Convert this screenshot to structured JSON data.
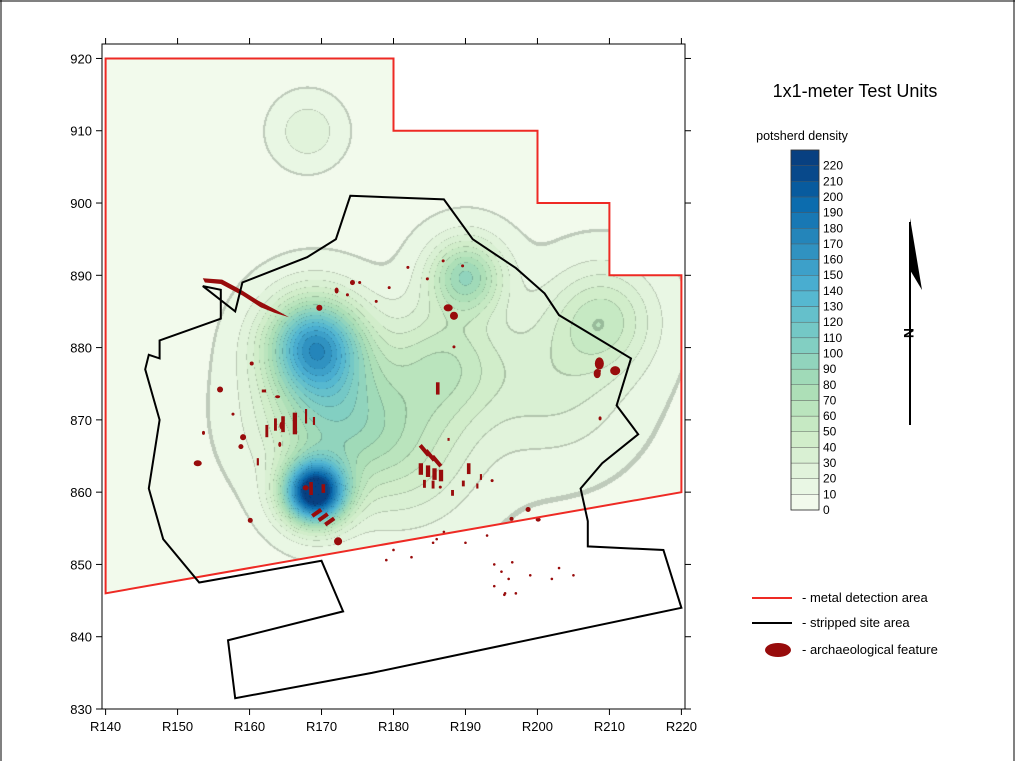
{
  "chart_data": {
    "type": "heatmap",
    "title": "1x1-meter Test Units",
    "colorbar": {
      "title": "potsherd density",
      "levels": [
        0,
        10,
        20,
        30,
        40,
        50,
        60,
        70,
        80,
        90,
        100,
        110,
        120,
        130,
        140,
        150,
        160,
        170,
        180,
        190,
        200,
        210,
        220
      ],
      "min": 0,
      "max": 220
    },
    "x_axis": {
      "min": 139.5,
      "max": 220.5,
      "ticks": [
        140,
        150,
        160,
        170,
        180,
        190,
        200,
        210,
        220
      ],
      "tick_labels": [
        "R140",
        "R150",
        "R160",
        "R170",
        "R180",
        "R190",
        "R200",
        "R210",
        "R220"
      ]
    },
    "y_axis": {
      "min": 830,
      "max": 922,
      "ticks": [
        830,
        840,
        850,
        860,
        870,
        880,
        890,
        900,
        910,
        920
      ],
      "tick_labels": [
        "830",
        "840",
        "850",
        "860",
        "870",
        "880",
        "890",
        "900",
        "910",
        "920"
      ]
    },
    "density_peaks": [
      {
        "x": 169,
        "y": 860,
        "value": 225,
        "spread": 4.2
      },
      {
        "x": 169,
        "y": 880.5,
        "value": 140,
        "spread": 6.5
      },
      {
        "x": 171,
        "y": 871,
        "value": 70,
        "spread": 9
      },
      {
        "x": 181,
        "y": 866,
        "value": 40,
        "spread": 10
      },
      {
        "x": 190,
        "y": 890,
        "value": 80,
        "spread": 5
      },
      {
        "x": 187,
        "y": 878,
        "value": 45,
        "spread": 8
      },
      {
        "x": 209,
        "y": 884,
        "value": 45,
        "spread": 7
      },
      {
        "x": 202,
        "y": 875,
        "value": 25,
        "spread": 10
      },
      {
        "x": 168,
        "y": 910,
        "value": 22,
        "spread": 4
      }
    ],
    "metal_detection_area": [
      [
        140,
        920
      ],
      [
        180,
        920
      ],
      [
        180,
        910
      ],
      [
        200,
        910
      ],
      [
        200,
        900
      ],
      [
        210,
        900
      ],
      [
        210,
        890
      ],
      [
        220,
        890
      ],
      [
        220,
        860
      ],
      [
        140,
        846
      ]
    ],
    "stripped_site_area": [
      [
        174,
        901
      ],
      [
        187,
        900.5
      ],
      [
        191,
        895
      ],
      [
        197,
        891
      ],
      [
        201,
        887.5
      ],
      [
        203,
        884.5
      ],
      [
        213,
        878.5
      ],
      [
        211,
        872
      ],
      [
        214,
        868
      ],
      [
        209,
        864
      ],
      [
        206,
        860.5
      ],
      [
        207,
        856
      ],
      [
        207,
        852.5
      ],
      [
        217.5,
        852
      ],
      [
        220,
        844
      ],
      [
        177,
        835
      ],
      [
        158,
        831.5
      ],
      [
        157,
        839.5
      ],
      [
        173,
        843.5
      ],
      [
        170,
        850.5
      ],
      [
        153,
        847.5
      ],
      [
        148,
        853.5
      ],
      [
        146,
        860.5
      ],
      [
        147.5,
        870
      ],
      [
        145.5,
        877
      ],
      [
        146,
        879
      ],
      [
        147.5,
        878.5
      ],
      [
        147.5,
        881
      ],
      [
        156,
        884
      ],
      [
        156,
        888
      ],
      [
        153.5,
        888.5
      ],
      [
        158,
        885
      ],
      [
        159,
        889
      ],
      [
        168,
        892.5
      ],
      [
        172,
        895
      ]
    ],
    "features": [
      {
        "shape": "ellipse",
        "x": 210.8,
        "y": 876.8,
        "rx": 1.0,
        "ry": 0.9
      },
      {
        "shape": "ellipse",
        "x": 208.6,
        "y": 877.8,
        "rx": 0.9,
        "ry": 1.2
      },
      {
        "shape": "ellipse",
        "x": 208.3,
        "y": 876.4,
        "rx": 0.7,
        "ry": 0.9
      },
      {
        "shape": "ellipse",
        "x": 187.6,
        "y": 885.5,
        "rx": 0.9,
        "ry": 0.7
      },
      {
        "shape": "ellipse",
        "x": 188.4,
        "y": 884.4,
        "rx": 0.8,
        "ry": 0.8
      },
      {
        "shape": "ellipse",
        "x": 169.7,
        "y": 885.5,
        "rx": 0.6,
        "ry": 0.6
      },
      {
        "shape": "ellipse",
        "x": 160.3,
        "y": 877.8,
        "rx": 0.4,
        "ry": 0.4
      },
      {
        "shape": "ellipse",
        "x": 155.9,
        "y": 874.2,
        "rx": 0.6,
        "ry": 0.6
      },
      {
        "shape": "ellipse",
        "x": 152.8,
        "y": 864.0,
        "rx": 0.8,
        "ry": 0.6
      },
      {
        "shape": "ellipse",
        "x": 159.1,
        "y": 867.6,
        "rx": 0.6,
        "ry": 0.6
      },
      {
        "shape": "ellipse",
        "x": 158.8,
        "y": 866.3,
        "rx": 0.5,
        "ry": 0.5
      },
      {
        "shape": "ellipse",
        "x": 167.8,
        "y": 860.6,
        "rx": 0.6,
        "ry": 0.5
      },
      {
        "shape": "ellipse",
        "x": 172.3,
        "y": 853.2,
        "rx": 0.8,
        "ry": 0.8
      },
      {
        "shape": "ellipse",
        "x": 160.1,
        "y": 856.1,
        "rx": 0.5,
        "ry": 0.5
      },
      {
        "shape": "ellipse",
        "x": 200.1,
        "y": 856.2,
        "rx": 0.5,
        "ry": 0.4
      },
      {
        "shape": "ellipse",
        "x": 198.7,
        "y": 857.6,
        "rx": 0.5,
        "ry": 0.5
      },
      {
        "shape": "ellipse",
        "x": 196.4,
        "y": 856.3,
        "rx": 0.4,
        "ry": 0.4
      },
      {
        "shape": "ellipse",
        "x": 164.5,
        "y": 869.2,
        "rx": 0.5,
        "ry": 0.8
      },
      {
        "shape": "ellipse",
        "x": 174.3,
        "y": 889.0,
        "rx": 0.5,
        "ry": 0.5
      },
      {
        "shape": "ellipse",
        "x": 172.1,
        "y": 887.9,
        "rx": 0.4,
        "ry": 0.6
      },
      {
        "shape": "ellipse",
        "x": 193.7,
        "y": 861.6,
        "rx": 0.3,
        "ry": 0.3
      },
      {
        "shape": "ellipse",
        "x": 208.7,
        "y": 870.2,
        "rx": 0.3,
        "ry": 0.4
      },
      {
        "shape": "ellipse",
        "x": 163.9,
        "y": 873.2,
        "rx": 0.5,
        "ry": 0.2
      },
      {
        "shape": "ellipse",
        "x": 164.2,
        "y": 866.6,
        "rx": 0.3,
        "ry": 0.5
      },
      {
        "shape": "ellipse",
        "x": 173.6,
        "y": 887.3,
        "rx": 0.3,
        "ry": 0.3
      },
      {
        "shape": "ellipse",
        "x": 157.7,
        "y": 870.8,
        "rx": 0.3,
        "ry": 0.3
      },
      {
        "shape": "ellipse",
        "x": 153.6,
        "y": 868.2,
        "rx": 0.3,
        "ry": 0.4
      },
      {
        "shape": "ellipse",
        "x": 186.5,
        "y": 860.7,
        "rx": 0.3,
        "ry": 0.2
      },
      {
        "shape": "ellipse",
        "x": 189.6,
        "y": 891.3,
        "rx": 0.3,
        "ry": 0.3
      },
      {
        "shape": "ellipse",
        "x": 186.9,
        "y": 892.0,
        "rx": 0.3,
        "ry": 0.3
      },
      {
        "shape": "ellipse",
        "x": 182.0,
        "y": 891.1,
        "rx": 0.3,
        "ry": 0.3
      },
      {
        "shape": "ellipse",
        "x": 179.4,
        "y": 888.3,
        "rx": 0.2,
        "ry": 0.2
      },
      {
        "shape": "ellipse",
        "x": 175.3,
        "y": 889.0,
        "rx": 0.3,
        "ry": 0.3
      },
      {
        "shape": "ellipse",
        "x": 184.7,
        "y": 889.5,
        "rx": 0.2,
        "ry": 0.2
      },
      {
        "shape": "ellipse",
        "x": 188.4,
        "y": 880.1,
        "rx": 0.2,
        "ry": 0.2
      },
      {
        "shape": "ellipse",
        "x": 177.6,
        "y": 886.4,
        "rx": 0.2,
        "ry": 0.2
      },
      {
        "shape": "rect",
        "x": 167.7,
        "y": 869.5,
        "w": 0.3,
        "h": 2.0
      },
      {
        "shape": "rect",
        "x": 166.0,
        "y": 868.0,
        "w": 0.6,
        "h": 3.0
      },
      {
        "shape": "rect",
        "x": 163.4,
        "y": 868.5,
        "w": 0.4,
        "h": 1.7
      },
      {
        "shape": "rect",
        "x": 162.2,
        "y": 867.6,
        "w": 0.4,
        "h": 1.7
      },
      {
        "shape": "rect",
        "x": 164.4,
        "y": 868.3,
        "w": 0.5,
        "h": 2.2
      },
      {
        "shape": "rect",
        "x": 161.0,
        "y": 863.7,
        "w": 0.3,
        "h": 1.0
      },
      {
        "shape": "rect",
        "x": 168.8,
        "y": 869.3,
        "w": 0.3,
        "h": 1.1
      },
      {
        "shape": "rect",
        "x": 168.3,
        "y": 859.6,
        "w": 0.5,
        "h": 1.8
      },
      {
        "shape": "rect",
        "x": 170.0,
        "y": 859.9,
        "w": 0.5,
        "h": 1.2
      },
      {
        "shape": "rect",
        "x": 161.7,
        "y": 873.8,
        "w": 0.6,
        "h": 0.4
      },
      {
        "shape": "rect",
        "x": 185.9,
        "y": 873.5,
        "w": 0.5,
        "h": 1.7
      },
      {
        "shape": "rect",
        "x": 187.5,
        "y": 867.1,
        "w": 0.3,
        "h": 0.4
      },
      {
        "shape": "rect",
        "x": 183.5,
        "y": 862.4,
        "w": 0.6,
        "h": 1.6
      },
      {
        "shape": "rect",
        "x": 184.5,
        "y": 862.1,
        "w": 0.6,
        "h": 1.6
      },
      {
        "shape": "rect",
        "x": 185.4,
        "y": 861.7,
        "w": 0.6,
        "h": 1.6
      },
      {
        "shape": "rect",
        "x": 186.3,
        "y": 861.5,
        "w": 0.6,
        "h": 1.6
      },
      {
        "shape": "rect",
        "x": 184.1,
        "y": 860.6,
        "w": 0.4,
        "h": 1.1
      },
      {
        "shape": "rect",
        "x": 185.3,
        "y": 860.5,
        "w": 0.4,
        "h": 1.1
      },
      {
        "shape": "rect",
        "x": 188.0,
        "y": 859.5,
        "w": 0.4,
        "h": 0.8
      },
      {
        "shape": "rect",
        "x": 189.5,
        "y": 860.8,
        "w": 0.4,
        "h": 0.8
      },
      {
        "shape": "rect",
        "x": 190.2,
        "y": 862.5,
        "w": 0.5,
        "h": 1.5
      },
      {
        "shape": "rect",
        "x": 191.5,
        "y": 860.5,
        "w": 0.3,
        "h": 0.7
      },
      {
        "shape": "rect",
        "x": 192.0,
        "y": 861.7,
        "w": 0.3,
        "h": 0.8
      },
      {
        "shape": "rect",
        "x": 208.5,
        "y": 876.6,
        "w": 0.3,
        "h": 0.3
      }
    ]
  },
  "legend": {
    "items": [
      {
        "label": "- metal detection area",
        "color": "#ee2a24",
        "marker": "line"
      },
      {
        "label": "- stripped site area",
        "color": "#000000",
        "marker": "line"
      },
      {
        "label": "- archaeological feature",
        "color": "#980c0c",
        "marker": "ellipse"
      }
    ]
  },
  "north_arrow": {
    "label": "N"
  },
  "colors": {
    "feature": "#980c0c",
    "metal_detection": "#ee2a24",
    "stripped_site": "#000000",
    "low_density": "#f7fcf0",
    "high_density": "#08306b"
  }
}
